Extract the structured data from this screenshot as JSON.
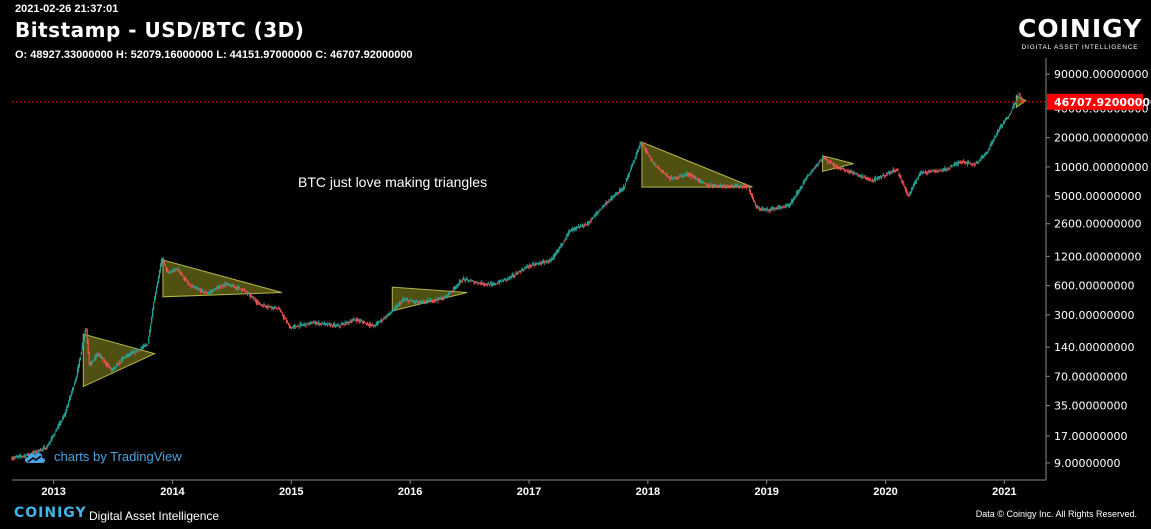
{
  "header": {
    "timestamp": "2021-02-26 21:37:01",
    "title": "Bitstamp - USD/BTC (3D)",
    "ohlc": "O: 48927.33000000 H: 52079.16000000 L: 44151.97000000 C: 46707.92000000"
  },
  "brand": {
    "name": "COINIGY",
    "tagline": "DIGITAL ASSET INTELLIGENCE"
  },
  "annotation": "BTC just love making triangles",
  "tradingview_credit": "charts by TradingView",
  "footer": {
    "brand": "COINIGY",
    "tagline": "Digital Asset Intelligence",
    "copyright": "Data © Coinigy Inc.  All Rights Reserved."
  },
  "colors": {
    "background": "#000000",
    "up": "#26a69a",
    "down": "#ef5350",
    "triangle_fill": "#6b6b1a",
    "triangle_stroke": "#b5b54a",
    "last_price": "#ff0000",
    "axis_text": "#ffffff"
  },
  "chart_data": {
    "type": "line",
    "y_scale": "log",
    "ylim": [
      6,
      120000
    ],
    "xlim": [
      2012.65,
      2021.35
    ],
    "y_ticks": [
      {
        "value": 90000,
        "label": "90000.00000000"
      },
      {
        "value": 40000,
        "label": "40000.00000000"
      },
      {
        "value": 20000,
        "label": "20000.00000000"
      },
      {
        "value": 10000,
        "label": "10000.00000000"
      },
      {
        "value": 5000,
        "label": "5000.00000000"
      },
      {
        "value": 2600,
        "label": "2600.00000000"
      },
      {
        "value": 1200,
        "label": "1200.00000000"
      },
      {
        "value": 600,
        "label": "600.00000000"
      },
      {
        "value": 300,
        "label": "300.00000000"
      },
      {
        "value": 140,
        "label": "140.00000000"
      },
      {
        "value": 70,
        "label": "70.00000000"
      },
      {
        "value": 35,
        "label": "35.00000000"
      },
      {
        "value": 17,
        "label": "17.00000000"
      },
      {
        "value": 9,
        "label": "9.00000000"
      }
    ],
    "x_ticks": [
      {
        "value": 2013,
        "label": "2013"
      },
      {
        "value": 2014,
        "label": "2014"
      },
      {
        "value": 2015,
        "label": "2015"
      },
      {
        "value": 2016,
        "label": "2016"
      },
      {
        "value": 2017,
        "label": "2017"
      },
      {
        "value": 2018,
        "label": "2018"
      },
      {
        "value": 2019,
        "label": "2019"
      },
      {
        "value": 2020,
        "label": "2020"
      },
      {
        "value": 2021,
        "label": "2021"
      }
    ],
    "last_price": {
      "value": 46707.92,
      "label": "46707.92000000"
    },
    "price_path": [
      [
        2012.65,
        10
      ],
      [
        2012.8,
        11
      ],
      [
        2012.95,
        13
      ],
      [
        2013.1,
        28
      ],
      [
        2013.2,
        70
      ],
      [
        2013.28,
        230
      ],
      [
        2013.31,
        90
      ],
      [
        2013.38,
        120
      ],
      [
        2013.5,
        80
      ],
      [
        2013.6,
        110
      ],
      [
        2013.72,
        130
      ],
      [
        2013.8,
        150
      ],
      [
        2013.85,
        400
      ],
      [
        2013.92,
        1150
      ],
      [
        2013.97,
        800
      ],
      [
        2014.05,
        900
      ],
      [
        2014.15,
        600
      ],
      [
        2014.3,
        500
      ],
      [
        2014.45,
        620
      ],
      [
        2014.6,
        550
      ],
      [
        2014.75,
        380
      ],
      [
        2014.9,
        350
      ],
      [
        2015.0,
        220
      ],
      [
        2015.05,
        230
      ],
      [
        2015.2,
        250
      ],
      [
        2015.4,
        230
      ],
      [
        2015.55,
        270
      ],
      [
        2015.7,
        230
      ],
      [
        2015.85,
        320
      ],
      [
        2015.95,
        430
      ],
      [
        2016.1,
        400
      ],
      [
        2016.3,
        450
      ],
      [
        2016.45,
        700
      ],
      [
        2016.55,
        650
      ],
      [
        2016.7,
        610
      ],
      [
        2016.85,
        730
      ],
      [
        2017.0,
        950
      ],
      [
        2017.2,
        1100
      ],
      [
        2017.35,
        2200
      ],
      [
        2017.5,
        2600
      ],
      [
        2017.65,
        4200
      ],
      [
        2017.8,
        6000
      ],
      [
        2017.95,
        18000
      ],
      [
        2018.05,
        11000
      ],
      [
        2018.2,
        7500
      ],
      [
        2018.35,
        8500
      ],
      [
        2018.5,
        6500
      ],
      [
        2018.65,
        6400
      ],
      [
        2018.85,
        6300
      ],
      [
        2018.92,
        3800
      ],
      [
        2019.0,
        3600
      ],
      [
        2019.2,
        4000
      ],
      [
        2019.35,
        8000
      ],
      [
        2019.48,
        12500
      ],
      [
        2019.6,
        10000
      ],
      [
        2019.75,
        8500
      ],
      [
        2019.9,
        7200
      ],
      [
        2020.1,
        9500
      ],
      [
        2020.2,
        5000
      ],
      [
        2020.3,
        8800
      ],
      [
        2020.5,
        9300
      ],
      [
        2020.65,
        11500
      ],
      [
        2020.75,
        10500
      ],
      [
        2020.85,
        13500
      ],
      [
        2020.95,
        23000
      ],
      [
        2021.05,
        35000
      ],
      [
        2021.1,
        47000
      ],
      [
        2021.13,
        57000
      ],
      [
        2021.16,
        46707.92
      ]
    ],
    "triangles": [
      {
        "name": "triangle-2013",
        "points": [
          [
            2013.25,
            190
          ],
          [
            2013.25,
            55
          ],
          [
            2013.85,
            120
          ]
        ]
      },
      {
        "name": "triangle-2014",
        "points": [
          [
            2013.92,
            1100
          ],
          [
            2013.92,
            460
          ],
          [
            2014.92,
            510
          ]
        ]
      },
      {
        "name": "triangle-2016",
        "points": [
          [
            2015.85,
            580
          ],
          [
            2015.85,
            330
          ],
          [
            2016.48,
            510
          ]
        ]
      },
      {
        "name": "triangle-2018",
        "points": [
          [
            2017.95,
            18000
          ],
          [
            2017.95,
            6200
          ],
          [
            2018.88,
            6200
          ]
        ]
      },
      {
        "name": "triangle-2019",
        "points": [
          [
            2019.47,
            13000
          ],
          [
            2019.47,
            9000
          ],
          [
            2019.73,
            10800
          ]
        ]
      },
      {
        "name": "triangle-2021",
        "points": [
          [
            2021.1,
            54000
          ],
          [
            2021.1,
            41000
          ],
          [
            2021.18,
            48000
          ]
        ]
      }
    ]
  }
}
